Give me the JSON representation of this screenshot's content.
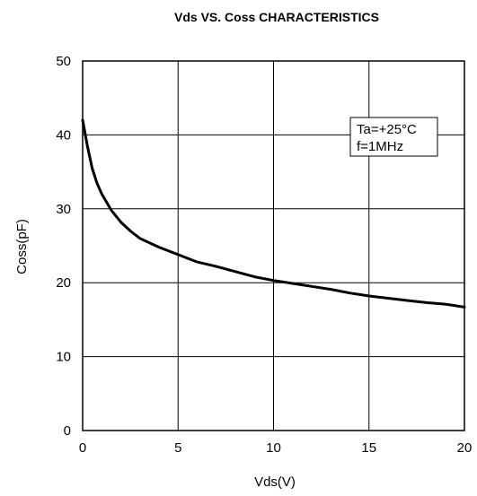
{
  "chart_data": {
    "type": "line",
    "title": "Vds  VS. Coss CHARACTERISTICS",
    "xlabel": "Vds(V)",
    "ylabel": "Coss(pF)",
    "xlim": [
      0,
      20
    ],
    "ylim": [
      0,
      50
    ],
    "x_ticks": [
      0,
      5,
      10,
      15,
      20
    ],
    "y_ticks": [
      0,
      10,
      20,
      30,
      40,
      50
    ],
    "grid": true,
    "annotation_lines": [
      "Ta=+25°C",
      "f=1MHz"
    ],
    "series": [
      {
        "color": "#000000",
        "x": [
          0,
          0.25,
          0.5,
          0.75,
          1,
          1.5,
          2,
          2.5,
          3,
          4,
          5,
          6,
          7,
          8,
          9,
          10,
          11,
          12,
          13,
          14,
          15,
          16,
          17,
          18,
          19,
          20
        ],
        "y": [
          42,
          38.5,
          35.5,
          33.5,
          32,
          29.8,
          28.2,
          27,
          26,
          24.8,
          23.8,
          22.8,
          22.2,
          21.5,
          20.8,
          20.3,
          19.9,
          19.5,
          19.1,
          18.6,
          18.2,
          17.9,
          17.6,
          17.3,
          17.1,
          16.7
        ]
      }
    ]
  }
}
